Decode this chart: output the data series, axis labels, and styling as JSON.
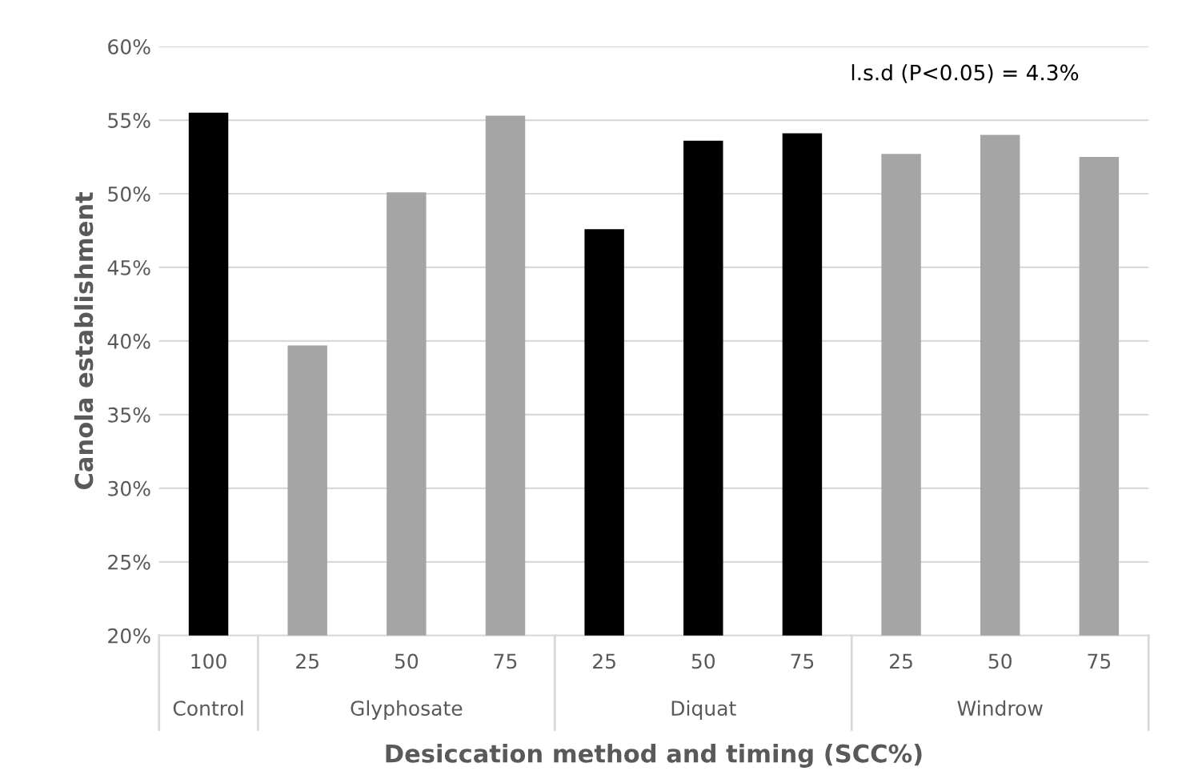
{
  "chart_data": {
    "type": "bar",
    "ylabel": "Canola establishment",
    "xlabel": "Desiccation method and timing (SCC%)",
    "categories": [
      "100",
      "25",
      "50",
      "75",
      "25",
      "50",
      "75",
      "25",
      "50",
      "75"
    ],
    "values": [
      55.5,
      39.7,
      50.1,
      55.3,
      47.6,
      53.6,
      54.1,
      52.7,
      54.0,
      52.5
    ],
    "colors": [
      "#000000",
      "#a5a5a5",
      "#a5a5a5",
      "#a5a5a5",
      "#000000",
      "#000000",
      "#000000",
      "#a5a5a5",
      "#a5a5a5",
      "#a5a5a5"
    ],
    "ylim": [
      20,
      60
    ],
    "yticks": [
      {
        "value": 20,
        "label": "20%"
      },
      {
        "value": 25,
        "label": "25%"
      },
      {
        "value": 30,
        "label": "30%"
      },
      {
        "value": 35,
        "label": "35%"
      },
      {
        "value": 40,
        "label": "40%"
      },
      {
        "value": 45,
        "label": "45%"
      },
      {
        "value": 50,
        "label": "50%"
      },
      {
        "value": 55,
        "label": "55%"
      },
      {
        "value": 60,
        "label": "60%"
      }
    ],
    "grid": "y",
    "annotations": [
      "l.s.d (P<0.05) = 4.3%",
      "Control",
      "Glyphosate",
      "Diquat",
      "Windrow"
    ]
  }
}
